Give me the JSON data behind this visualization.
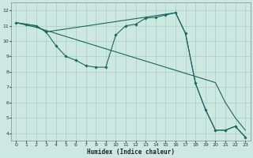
{
  "xlabel": "Humidex (Indice chaleur)",
  "bg_color": "#cce8e0",
  "grid_color": "#a8cec8",
  "line_color": "#1a6858",
  "xlim": [
    -0.5,
    23.5
  ],
  "ylim": [
    3.5,
    12.5
  ],
  "xticks": [
    0,
    1,
    2,
    3,
    4,
    5,
    6,
    7,
    8,
    9,
    10,
    11,
    12,
    13,
    14,
    15,
    16,
    17,
    18,
    19,
    20,
    21,
    22,
    23
  ],
  "yticks": [
    4,
    5,
    6,
    7,
    8,
    9,
    10,
    11,
    12
  ],
  "curve1_x": [
    0,
    1,
    2,
    3,
    4,
    5,
    6,
    7,
    8,
    9,
    10,
    11,
    12,
    13,
    14,
    15,
    16,
    17,
    18,
    19,
    20,
    21,
    22,
    23
  ],
  "curve1_y": [
    11.2,
    11.1,
    11.0,
    10.6,
    9.7,
    9.0,
    8.75,
    8.4,
    8.3,
    8.3,
    10.4,
    11.0,
    11.1,
    11.5,
    11.55,
    11.7,
    11.85,
    10.5,
    7.25,
    5.55,
    4.2,
    4.2,
    4.45,
    3.75
  ],
  "curve2_x": [
    0,
    1,
    2,
    3,
    4,
    5,
    6,
    7,
    8,
    9,
    10,
    11,
    12,
    13,
    14,
    15,
    16,
    17,
    18,
    19,
    20,
    21,
    22,
    23
  ],
  "curve2_y": [
    11.2,
    11.05,
    10.9,
    10.7,
    10.5,
    10.3,
    10.1,
    9.9,
    9.7,
    9.5,
    9.3,
    9.1,
    8.9,
    8.7,
    8.5,
    8.3,
    8.1,
    7.9,
    7.7,
    7.5,
    7.3,
    6.0,
    5.0,
    4.2
  ],
  "curve3_x": [
    0,
    1,
    2,
    3,
    16,
    17,
    18,
    19,
    20,
    21,
    22,
    23
  ],
  "curve3_y": [
    11.2,
    11.1,
    11.0,
    10.6,
    11.85,
    10.5,
    7.25,
    5.55,
    4.2,
    4.2,
    4.45,
    3.75
  ]
}
